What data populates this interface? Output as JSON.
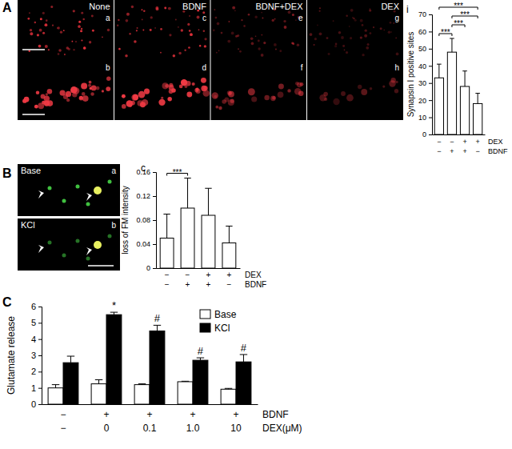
{
  "figure": {
    "panel_labels": [
      "A",
      "B",
      "C"
    ]
  },
  "image_panels": [
    {
      "column_titles": [
        "None",
        "BDNF",
        "BDNF+DEX",
        "DEX"
      ],
      "sublabels": [
        "a",
        "b",
        "c",
        "d",
        "e",
        "f",
        "g",
        "h"
      ]
    },
    {
      "row_titles": [
        "Base",
        "KCl"
      ],
      "sublabels": [
        "a",
        "b"
      ]
    }
  ],
  "chart_data": [
    {
      "type": "bar",
      "title": "i",
      "y_label": "Synapsin I positive sites",
      "categories": [
        null,
        null,
        null,
        null
      ],
      "values": [
        33,
        48,
        28,
        18
      ],
      "errors": [
        8,
        8,
        9,
        6
      ],
      "color": "#ffffff",
      "ylim": [
        0,
        70
      ],
      "yticks": [
        0,
        10,
        20,
        30,
        40,
        50,
        60,
        70
      ],
      "condition_rows": [
        {
          "name": "DEX",
          "labels": [
            "−",
            "−",
            "+",
            "+"
          ]
        },
        {
          "name": "BDNF",
          "labels": [
            "−",
            "+",
            "+",
            "−"
          ]
        }
      ],
      "annotations": [
        {
          "text": "***",
          "from": 0,
          "to": 1
        },
        {
          "text": "***",
          "from": 1,
          "to": 2
        },
        {
          "text": "***",
          "from": 1,
          "to": 3
        },
        {
          "text": "***",
          "from": 0,
          "to": 3
        }
      ]
    },
    {
      "type": "bar",
      "title": "c",
      "y_label": "loss of FM intensity",
      "categories": [
        null,
        null,
        null,
        null
      ],
      "values": [
        0.05,
        0.1,
        0.088,
        0.042
      ],
      "errors": [
        0.04,
        0.05,
        0.045,
        0.028
      ],
      "color": "#ffffff",
      "ylim": [
        0,
        0.16
      ],
      "yticks": [
        0,
        0.04,
        0.08,
        0.12,
        0.16
      ],
      "condition_rows": [
        {
          "name": "DEX",
          "labels": [
            "−",
            "−",
            "+",
            "+"
          ]
        },
        {
          "name": "BDNF",
          "labels": [
            "−",
            "+",
            "+",
            "−"
          ]
        }
      ],
      "annotations": [
        {
          "text": "***",
          "from": 0,
          "to": 1
        }
      ]
    },
    {
      "type": "bar",
      "y_label": "Glutamate release",
      "categories": [
        null,
        null,
        null,
        null,
        null
      ],
      "series": [
        {
          "name": "Base",
          "color": "#ffffff",
          "values": [
            1.0,
            1.25,
            1.2,
            1.38,
            0.92
          ],
          "errors": [
            0.2,
            0.25,
            0.05,
            0.03,
            0.05
          ]
        },
        {
          "name": "KCl",
          "color": "#000000",
          "values": [
            2.55,
            5.5,
            4.5,
            2.7,
            2.6
          ],
          "errors": [
            0.4,
            0.15,
            0.35,
            0.15,
            0.45
          ]
        }
      ],
      "ylim": [
        0,
        6
      ],
      "yticks": [
        0,
        1,
        2,
        3,
        4,
        5,
        6
      ],
      "legend": "top-right",
      "condition_rows": [
        {
          "name": "BDNF",
          "labels": [
            "−",
            "+",
            "+",
            "+",
            "+"
          ]
        },
        {
          "name": "DEX(μM)",
          "labels": [
            "−",
            "0",
            "0.1",
            "1.0",
            "10"
          ]
        }
      ],
      "annotations": [
        {
          "text": "*",
          "series": 1,
          "index": 1
        },
        {
          "text": "#",
          "series": 1,
          "index": 2
        },
        {
          "text": "#",
          "series": 1,
          "index": 3
        },
        {
          "text": "#",
          "series": 1,
          "index": 4
        }
      ]
    }
  ]
}
